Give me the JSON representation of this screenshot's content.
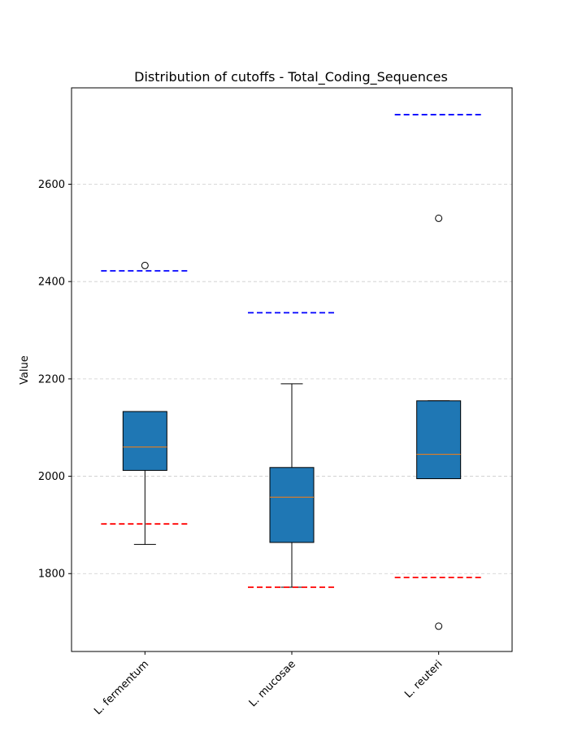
{
  "chart_data": {
    "type": "boxplot",
    "title": "Distribution of cutoffs - Total_Coding_Sequences",
    "xlabel": "",
    "ylabel": "Value",
    "ylim": [
      1640,
      2798
    ],
    "yticks": [
      1800,
      2000,
      2200,
      2400,
      2600
    ],
    "grid": "y-dashed",
    "categories": [
      "L. fermentum",
      "L. mucosae",
      "L. reuteri"
    ],
    "boxes": [
      {
        "category": "L. fermentum",
        "whisker_low": 1860,
        "q1": 2012,
        "median": 2060,
        "q3": 2133,
        "whisker_high": 2133,
        "outliers": [
          2433
        ]
      },
      {
        "category": "L. mucosae",
        "whisker_low": 1772,
        "q1": 1864,
        "median": 1957,
        "q3": 2018,
        "whisker_high": 2190,
        "outliers": []
      },
      {
        "category": "L. reuteri",
        "whisker_low": 1995,
        "q1": 1995,
        "median": 2045,
        "q3": 2155,
        "whisker_high": 2155,
        "outliers": [
          2530,
          1692
        ]
      }
    ],
    "upper_cutoffs": [
      2422,
      2336,
      2743
    ],
    "lower_cutoffs": [
      1902,
      1772,
      1792
    ],
    "colors": {
      "box_fill": "#1f77b4",
      "median": "#ff7f0e",
      "upper_cutoff": "#0000ff",
      "lower_cutoff": "#ff0000",
      "grid": "#cccccc"
    }
  }
}
